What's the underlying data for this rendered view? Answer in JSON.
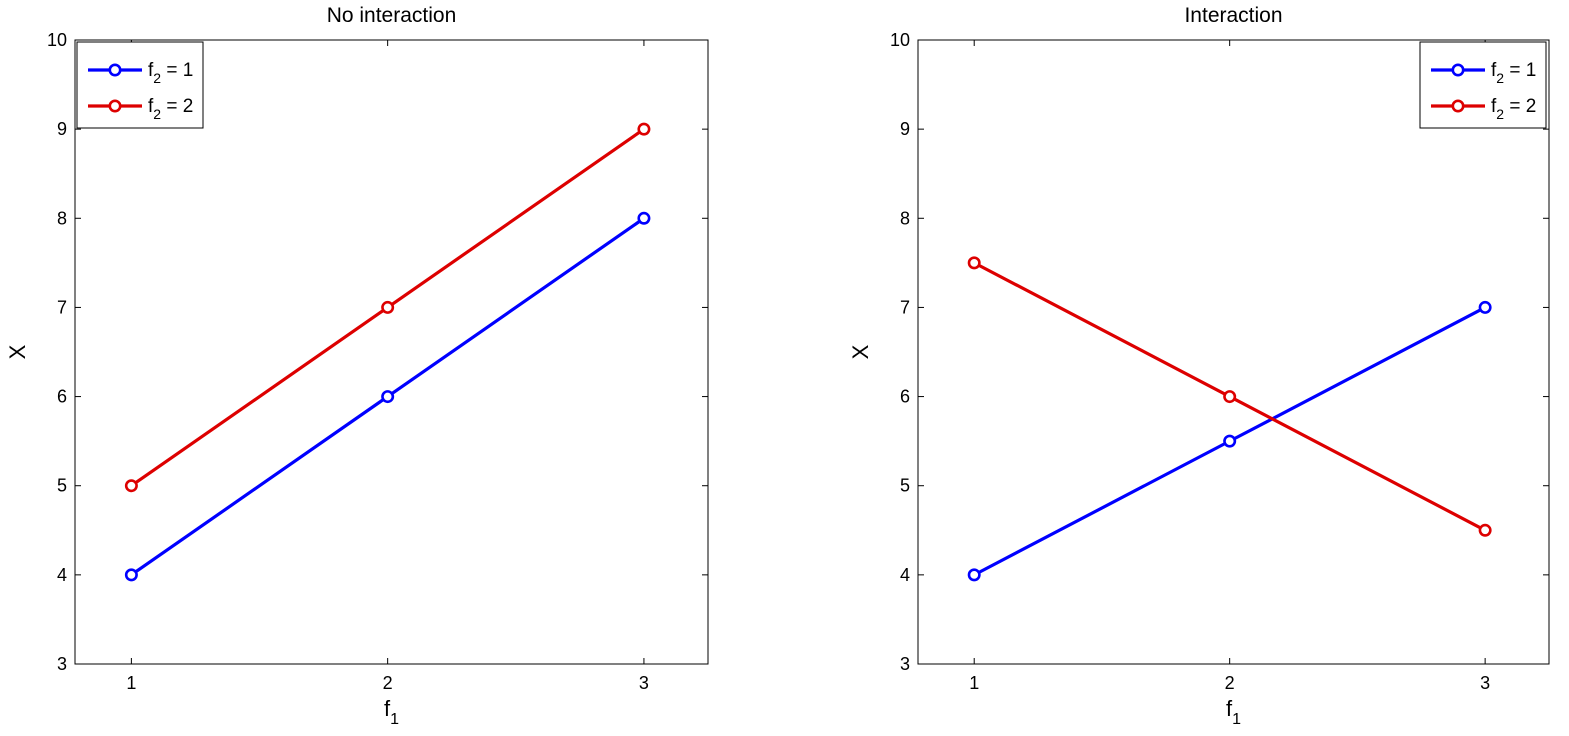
{
  "chart_data": [
    {
      "type": "line",
      "title": "No interaction",
      "xlabel": "f",
      "xlabel_sub": "1",
      "ylabel": "X",
      "categories": [
        "1",
        "2",
        "3"
      ],
      "x": [
        1,
        2,
        3
      ],
      "xlim": [
        0.78,
        3.25
      ],
      "ylim": [
        3,
        10
      ],
      "yticks": [
        3,
        4,
        5,
        6,
        7,
        8,
        9,
        10
      ],
      "grid": false,
      "legend_position": "top-left",
      "series": [
        {
          "name": "f",
          "name_sub": "2",
          "name_suffix": " = 1",
          "color": "#0000ff",
          "values": [
            4,
            6,
            8
          ]
        },
        {
          "name": "f",
          "name_sub": "2",
          "name_suffix": " = 2",
          "color": "#dd0000",
          "values": [
            5,
            7,
            9
          ]
        }
      ]
    },
    {
      "type": "line",
      "title": "Interaction",
      "xlabel": "f",
      "xlabel_sub": "1",
      "ylabel": "X",
      "categories": [
        "1",
        "2",
        "3"
      ],
      "x": [
        1,
        2,
        3
      ],
      "xlim": [
        0.78,
        3.25
      ],
      "ylim": [
        3,
        10
      ],
      "yticks": [
        3,
        4,
        5,
        6,
        7,
        8,
        9,
        10
      ],
      "grid": false,
      "legend_position": "top-right",
      "series": [
        {
          "name": "f",
          "name_sub": "2",
          "name_suffix": " = 1",
          "color": "#0000ff",
          "values": [
            4,
            5.5,
            7
          ]
        },
        {
          "name": "f",
          "name_sub": "2",
          "name_suffix": " = 2",
          "color": "#dd0000",
          "values": [
            7.5,
            6,
            4.5
          ]
        }
      ]
    }
  ]
}
